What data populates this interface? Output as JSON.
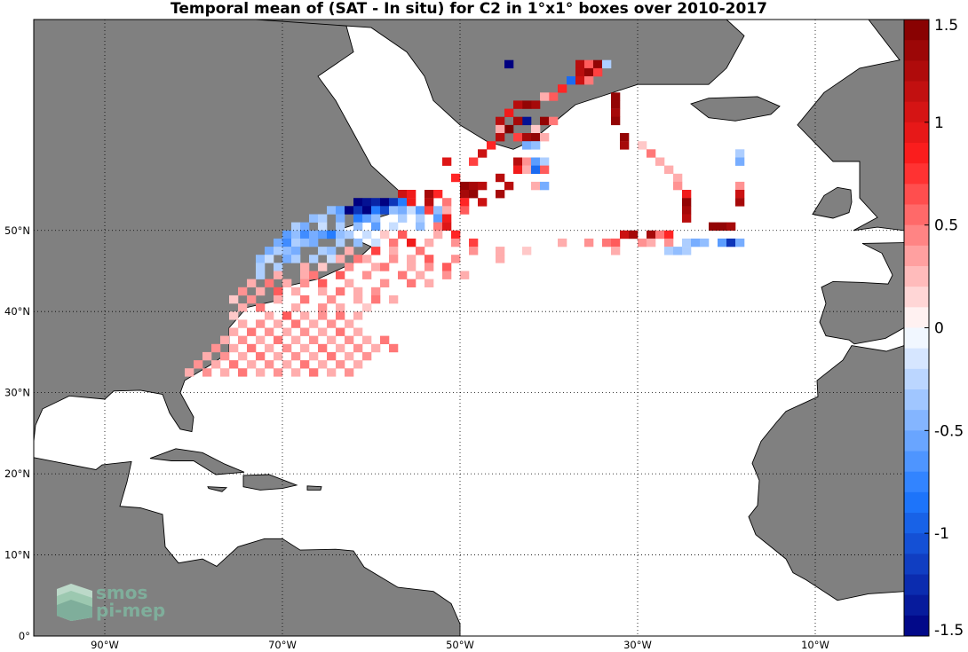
{
  "title": "Temporal mean of (SAT - In situ) for C2 in 1°x1° boxes over 2010-2017",
  "map": {
    "lon_range": [
      -98,
      0
    ],
    "lat_range": [
      0,
      76
    ],
    "land_color": "#808080",
    "lat_ticks": [
      {
        "value": 50,
        "label": "50°N"
      },
      {
        "value": 40,
        "label": "40°N"
      },
      {
        "value": 30,
        "label": "30°N"
      },
      {
        "value": 20,
        "label": "20°N"
      },
      {
        "value": 10,
        "label": "10°N"
      },
      {
        "value": 0,
        "label": "0°"
      }
    ],
    "lon_ticks": [
      {
        "value": -90,
        "label": "90°W"
      },
      {
        "value": -70,
        "label": "70°W"
      },
      {
        "value": -50,
        "label": "50°W"
      },
      {
        "value": -30,
        "label": "30°W"
      },
      {
        "value": -10,
        "label": "10°W"
      }
    ]
  },
  "colorbar": {
    "range": [
      -1.5,
      1.5
    ],
    "ticks": [
      {
        "value": 1.5,
        "label": "1.5"
      },
      {
        "value": 1,
        "label": "1"
      },
      {
        "value": 0.5,
        "label": "0.5"
      },
      {
        "value": 0,
        "label": "0"
      },
      {
        "value": -0.5,
        "label": "-0.5"
      },
      {
        "value": -1,
        "label": "-1"
      },
      {
        "value": -1.5,
        "label": "-1.5"
      }
    ]
  },
  "logo": {
    "line1": "smos",
    "line2": "pi-mep"
  }
}
